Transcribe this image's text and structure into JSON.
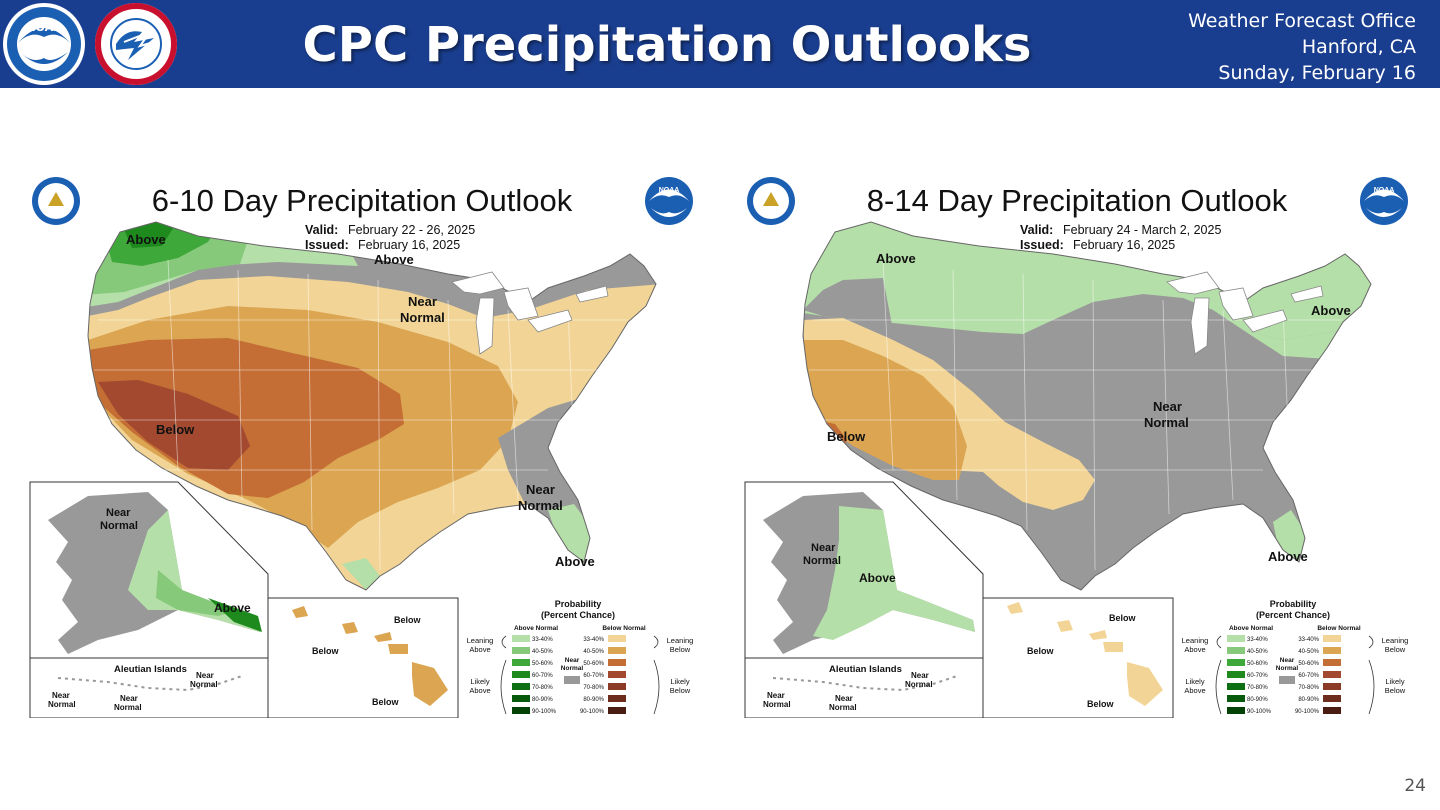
{
  "header": {
    "title": "CPC Precipitation Outlooks",
    "office_line1": "Weather Forecast Office",
    "office_line2": "Hanford, CA",
    "office_line3": "Sunday, February 16",
    "bg_color": "#1a3e8f",
    "noaa_logo_text": "NOAA",
    "nws_logo_text": "NATIONAL WEATHER SERVICE"
  },
  "page_number": "24",
  "colors": {
    "above_33_40": "#b5dfa8",
    "above_40_50": "#86c97a",
    "above_50_60": "#3fa83a",
    "above_60_70": "#1e8a1e",
    "above_70_80": "#0c6f12",
    "above_80_90": "#075a0b",
    "above_90_100": "#034206",
    "below_33_40": "#f2d596",
    "below_40_50": "#dba552",
    "below_50_60": "#c46e35",
    "below_60_70": "#a2492f",
    "below_70_80": "#8a3a25",
    "below_80_90": "#6e2c1d",
    "below_90_100": "#4b1d12",
    "near_normal": "#999999"
  },
  "legend": {
    "title": "Probability",
    "subtitle": "(Percent Chance)",
    "above_head": "Above Normal",
    "below_head": "Below Normal",
    "near_label_1": "Near",
    "near_label_2": "Normal",
    "leaning_above_1": "Leaning",
    "leaning_above_2": "Above",
    "likely_above_1": "Likely",
    "likely_above_2": "Above",
    "leaning_below_1": "Leaning",
    "leaning_below_2": "Below",
    "likely_below_1": "Likely",
    "likely_below_2": "Below",
    "bins": [
      "33-40%",
      "40-50%",
      "50-60%",
      "60-70%",
      "70-80%",
      "80-90%",
      "90-100%"
    ]
  },
  "maps": [
    {
      "title": "6-10 Day Precipitation Outlook",
      "valid_label": "Valid:",
      "valid_value": "February 22 - 26, 2025",
      "issued_label": "Issued:",
      "issued_value": "February 16, 2025",
      "regions": [
        {
          "category": "Above",
          "prob": "33-60%",
          "area": "Pacific Northwest / northern tier"
        },
        {
          "category": "Near Normal",
          "area": "northern Plains / Great Lakes / Southeast coast"
        },
        {
          "category": "Below",
          "prob": "33-70%",
          "area": "California, Southwest, southern Plains, Ohio Valley, Northeast"
        },
        {
          "category": "Above",
          "area": "Florida, south Texas tip, southeast Alaska"
        },
        {
          "category": "Near Normal",
          "area": "western/central Alaska, Aleutian Islands"
        },
        {
          "category": "Below",
          "area": "Hawaii"
        }
      ],
      "labels": {
        "above_nw": "Above",
        "above_north": "Above",
        "near_gl_1": "Near",
        "near_gl_2": "Normal",
        "below_sw": "Below",
        "near_se_1": "Near",
        "near_se_2": "Normal",
        "above_fl": "Above",
        "ak_near_1": "Near",
        "ak_near_2": "Normal",
        "ak_above": "Above",
        "aleutian_title": "Aleutian Islands",
        "al_near1_1": "Near",
        "al_near1_2": "Normal",
        "al_near2_1": "Near",
        "al_near2_2": "Normal",
        "al_near3_1": "Near",
        "al_near3_2": "Normal",
        "hi_below1": "Below",
        "hi_below2": "Below",
        "hi_below3": "Below"
      }
    },
    {
      "title": "8-14 Day Precipitation Outlook",
      "valid_label": "Valid:",
      "valid_value": "February 24 - March 2, 2025",
      "issued_label": "Issued:",
      "issued_value": "February 16, 2025",
      "regions": [
        {
          "category": "Above",
          "prob": "33-50%",
          "area": "northern tier, Northeast, Florida, Alaska interior"
        },
        {
          "category": "Near Normal",
          "area": "central and eastern US, western Alaska, Aleutians"
        },
        {
          "category": "Below",
          "prob": "33-60%",
          "area": "California, Southwest, southern Plains, Hawaii"
        }
      ],
      "labels": {
        "above_nw": "Above",
        "above_ne": "Above",
        "near_central_1": "Near",
        "near_central_2": "Normal",
        "below_sw": "Below",
        "above_fl": "Above",
        "ak_near_1": "Near",
        "ak_near_2": "Normal",
        "ak_above": "Above",
        "aleutian_title": "Aleutian Islands",
        "al_near1_1": "Near",
        "al_near1_2": "Normal",
        "al_near2_1": "Near",
        "al_near2_2": "Normal",
        "al_near3_1": "Near",
        "al_near3_2": "Normal",
        "hi_below1": "Below",
        "hi_below2": "Below",
        "hi_below3": "Below"
      }
    }
  ]
}
